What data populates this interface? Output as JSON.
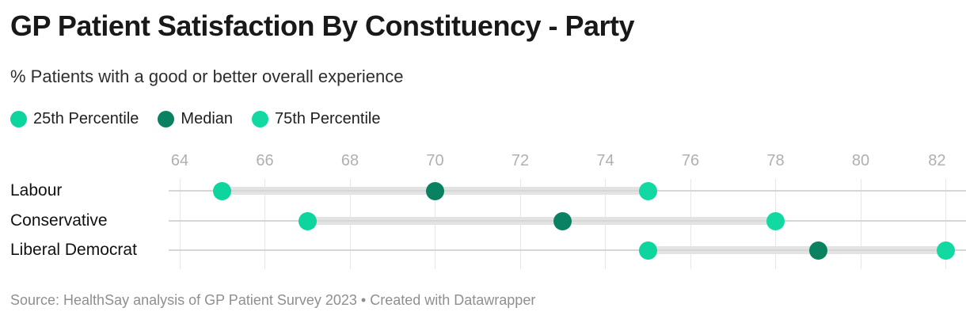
{
  "chart_data": {
    "type": "scatter",
    "subtype": "range-dot-plot",
    "title": "GP Patient Satisfaction By Constituency - Party",
    "subtitle": "% Patients with a good or better overall experience",
    "categories": [
      "Labour",
      "Conservative",
      "Liberal Democrat"
    ],
    "series": [
      {
        "name": "25th Percentile",
        "values": [
          65,
          67,
          75
        ],
        "color": "#0ed49e"
      },
      {
        "name": "Median",
        "values": [
          70,
          73,
          79
        ],
        "color": "#0a8161"
      },
      {
        "name": "75th Percentile",
        "values": [
          75,
          78,
          82
        ],
        "color": "#12d8a2"
      }
    ],
    "x_ticks": [
      64,
      66,
      68,
      70,
      72,
      74,
      76,
      78,
      80,
      82
    ],
    "xlim": [
      64,
      82
    ],
    "xlabel": "",
    "ylabel": "",
    "grid": true,
    "legend_position": "top-left"
  },
  "footer": {
    "text": "Source: HealthSay analysis of GP Patient Survey 2023 • Created with Datawrapper"
  },
  "colors": {
    "grid_line": "#e7e7e7",
    "row_line": "#d6d6d6",
    "range_bar": "#e3e3e3",
    "axis_text": "#b0b0b0",
    "footer_text": "#8f8f8f",
    "title_text": "#191919"
  }
}
